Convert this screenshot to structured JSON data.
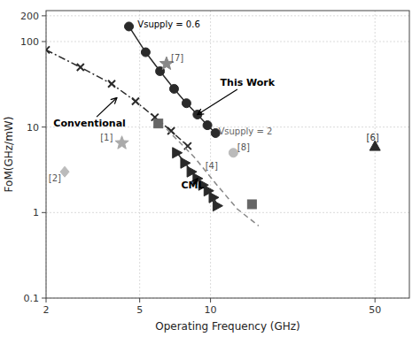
{
  "chart_data": {
    "type": "line",
    "xlabel": "Operating Frequency (GHz)",
    "ylabel": "FoM(GHz/mW)",
    "log": true,
    "grid": true,
    "xlim": [
      2,
      70
    ],
    "ylim": [
      0.1,
      230
    ],
    "xticks": [
      2,
      5,
      10,
      50
    ],
    "yticks": [
      0.1,
      1,
      10,
      100,
      200
    ],
    "series": [
      {
        "type": "line",
        "color": "#2a2a2a",
        "marker": "circle",
        "line_style": "solid",
        "x": [
          4.5,
          5.3,
          6.1,
          7.0,
          7.9,
          8.8,
          9.7,
          10.5
        ],
        "values": [
          150,
          75,
          45,
          28,
          19,
          14,
          10.5,
          8.5
        ]
      },
      {
        "type": "line",
        "color": "#2a2a2a",
        "marker": "x",
        "line_style": "dashdot",
        "x": [
          2.0,
          2.8,
          3.8,
          4.8,
          5.8,
          6.8,
          8.0
        ],
        "values": [
          80,
          50,
          32,
          20,
          13,
          9,
          6
        ]
      },
      {
        "type": "line",
        "color": "#2a2a2a",
        "marker": "triangle-right",
        "line_style": "solid",
        "x": [
          7.2,
          7.8,
          8.3,
          8.8,
          9.3,
          9.8,
          10.3,
          10.7
        ],
        "values": [
          5.0,
          3.8,
          3.0,
          2.5,
          2.1,
          1.8,
          1.5,
          1.2
        ]
      },
      {
        "type": "line",
        "color": "#888888",
        "marker": "none",
        "line_style": "dashed",
        "x": [
          6.5,
          8.5,
          10.5,
          13.0,
          16.0
        ],
        "values": [
          9.5,
          4.5,
          2.2,
          1.1,
          0.7
        ]
      },
      {
        "type": "scatter",
        "color": "#888888",
        "marker": "star",
        "x": [
          6.5
        ],
        "values": [
          55
        ]
      },
      {
        "type": "scatter",
        "color": "#aaaaaa",
        "marker": "star",
        "x": [
          4.2
        ],
        "values": [
          6.5
        ]
      },
      {
        "type": "scatter",
        "color": "#bbbbbb",
        "marker": "diamond",
        "x": [
          2.4
        ],
        "values": [
          3.0
        ]
      },
      {
        "type": "scatter",
        "color": "#666666",
        "marker": "square",
        "x": [
          6.0
        ],
        "values": [
          11.0
        ]
      },
      {
        "type": "scatter",
        "color": "#666666",
        "marker": "square",
        "x": [
          15.0
        ],
        "values": [
          1.25
        ]
      },
      {
        "type": "scatter",
        "color": "#bbbbbb",
        "marker": "circle",
        "x": [
          12.5
        ],
        "values": [
          5.0
        ]
      },
      {
        "type": "scatter",
        "color": "#2a2a2a",
        "marker": "triangle-up",
        "x": [
          50.0
        ],
        "values": [
          6.0
        ]
      }
    ],
    "annotations": [
      {
        "text": "Vsupply = 0.6",
        "x": 4.9,
        "y": 160,
        "color": "black"
      },
      {
        "text": "Vsupply = 2",
        "x": 10.8,
        "y": 9.0,
        "color": "#666666"
      },
      {
        "text": "This Work",
        "x": 11.0,
        "y": 33.0,
        "arrow_x": 8.8,
        "arrow_y": 14.0,
        "color": "black"
      },
      {
        "text": "Conventional",
        "x": 2.15,
        "y": 11.0,
        "arrow_x": 4.0,
        "arrow_y": 22.0,
        "color": "black"
      },
      {
        "text": "CML",
        "x": 7.5,
        "y": 2.1,
        "arrow_x": 8.8,
        "arrow_y": 2.5,
        "color": "black"
      },
      {
        "text": "[7]",
        "x": 6.8,
        "y": 65,
        "color": "#555555"
      },
      {
        "text": "[1]",
        "x": 3.4,
        "y": 7.5,
        "color": "#555555"
      },
      {
        "text": "[2]",
        "x": 2.05,
        "y": 2.5,
        "color": "#555555"
      },
      {
        "text": "[4]",
        "x": 9.5,
        "y": 3.5,
        "color": "#555555"
      },
      {
        "text": "[8]",
        "x": 13.0,
        "y": 5.8,
        "color": "#555555"
      },
      {
        "text": "[6]",
        "x": 46.0,
        "y": 7.5,
        "color": "#333333"
      }
    ]
  }
}
